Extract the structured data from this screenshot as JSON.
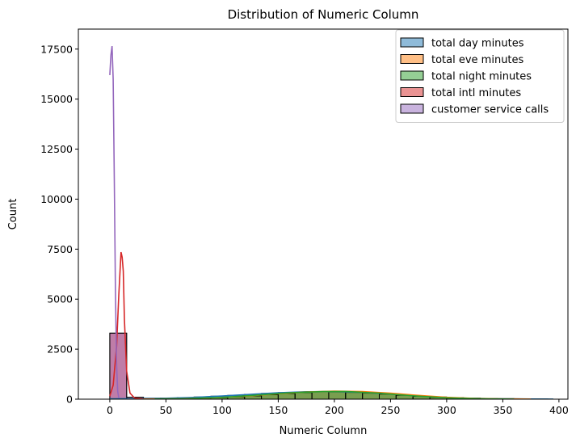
{
  "chart_data": {
    "type": "histogram",
    "title": "Distribution of Numeric Column",
    "xlabel": "Numeric Column",
    "ylabel": "Count",
    "xlim": [
      -28,
      408
    ],
    "ylim": [
      0,
      18500
    ],
    "xticks": [
      0,
      50,
      100,
      150,
      200,
      250,
      300,
      350,
      400
    ],
    "yticks": [
      0,
      2500,
      5000,
      7500,
      10000,
      12500,
      15000,
      17500
    ],
    "xtick_labels": [
      "0",
      "50",
      "100",
      "150",
      "200",
      "250",
      "300",
      "350",
      "400"
    ],
    "ytick_labels": [
      "0",
      "2500",
      "5000",
      "7500",
      "10000",
      "12500",
      "15000",
      "17500"
    ],
    "legend_position": "top-right",
    "grid": false,
    "series": [
      {
        "name": "total day minutes",
        "color": "#1f77b4",
        "bins": [
          [
            0,
            15,
            12
          ],
          [
            15,
            30,
            30
          ],
          [
            30,
            45,
            45
          ],
          [
            45,
            60,
            60
          ],
          [
            60,
            75,
            80
          ],
          [
            75,
            90,
            110
          ],
          [
            90,
            105,
            150
          ],
          [
            105,
            120,
            190
          ],
          [
            120,
            135,
            240
          ],
          [
            135,
            150,
            290
          ],
          [
            150,
            165,
            330
          ],
          [
            165,
            180,
            355
          ],
          [
            180,
            195,
            365
          ],
          [
            195,
            210,
            355
          ],
          [
            210,
            225,
            330
          ],
          [
            225,
            240,
            290
          ],
          [
            240,
            255,
            240
          ],
          [
            255,
            270,
            190
          ],
          [
            270,
            285,
            150
          ],
          [
            285,
            300,
            110
          ],
          [
            300,
            315,
            80
          ],
          [
            315,
            330,
            55
          ],
          [
            330,
            345,
            35
          ],
          [
            345,
            360,
            25
          ],
          [
            360,
            375,
            15
          ],
          [
            375,
            390,
            10
          ]
        ],
        "kde": [
          [
            0,
            20
          ],
          [
            25,
            35
          ],
          [
            50,
            50
          ],
          [
            75,
            90
          ],
          [
            100,
            160
          ],
          [
            125,
            240
          ],
          [
            150,
            320
          ],
          [
            175,
            370
          ],
          [
            200,
            380
          ],
          [
            225,
            340
          ],
          [
            250,
            260
          ],
          [
            275,
            160
          ],
          [
            300,
            80
          ],
          [
            325,
            40
          ],
          [
            350,
            20
          ],
          [
            375,
            10
          ],
          [
            395,
            5
          ]
        ]
      },
      {
        "name": "total eve minutes",
        "color": "#ff7f0e",
        "bins": [
          [
            0,
            15,
            5
          ],
          [
            15,
            30,
            10
          ],
          [
            30,
            45,
            15
          ],
          [
            45,
            60,
            20
          ],
          [
            60,
            75,
            30
          ],
          [
            75,
            90,
            45
          ],
          [
            90,
            105,
            70
          ],
          [
            105,
            120,
            110
          ],
          [
            120,
            135,
            160
          ],
          [
            135,
            150,
            220
          ],
          [
            150,
            165,
            280
          ],
          [
            165,
            180,
            330
          ],
          [
            180,
            195,
            370
          ],
          [
            195,
            210,
            390
          ],
          [
            210,
            225,
            380
          ],
          [
            225,
            240,
            340
          ],
          [
            240,
            255,
            280
          ],
          [
            255,
            270,
            210
          ],
          [
            270,
            285,
            150
          ],
          [
            285,
            300,
            100
          ],
          [
            300,
            315,
            60
          ],
          [
            315,
            330,
            35
          ],
          [
            330,
            345,
            20
          ],
          [
            345,
            360,
            10
          ],
          [
            360,
            375,
            5
          ]
        ],
        "kde": [
          [
            30,
            10
          ],
          [
            60,
            25
          ],
          [
            90,
            60
          ],
          [
            120,
            150
          ],
          [
            150,
            270
          ],
          [
            175,
            360
          ],
          [
            200,
            400
          ],
          [
            225,
            380
          ],
          [
            250,
            300
          ],
          [
            275,
            190
          ],
          [
            300,
            95
          ],
          [
            325,
            40
          ],
          [
            350,
            15
          ],
          [
            375,
            5
          ]
        ]
      },
      {
        "name": "total night minutes",
        "color": "#2ca02c",
        "bins": [
          [
            30,
            45,
            10
          ],
          [
            45,
            60,
            20
          ],
          [
            60,
            75,
            30
          ],
          [
            75,
            90,
            50
          ],
          [
            90,
            105,
            80
          ],
          [
            105,
            120,
            120
          ],
          [
            120,
            135,
            170
          ],
          [
            135,
            150,
            230
          ],
          [
            150,
            165,
            290
          ],
          [
            165,
            180,
            340
          ],
          [
            180,
            195,
            370
          ],
          [
            195,
            210,
            380
          ],
          [
            210,
            225,
            360
          ],
          [
            225,
            240,
            320
          ],
          [
            240,
            255,
            260
          ],
          [
            255,
            270,
            200
          ],
          [
            270,
            285,
            140
          ],
          [
            285,
            300,
            90
          ],
          [
            300,
            315,
            55
          ],
          [
            315,
            330,
            30
          ],
          [
            330,
            345,
            15
          ]
        ],
        "kde": [
          [
            40,
            10
          ],
          [
            70,
            30
          ],
          [
            100,
            90
          ],
          [
            130,
            200
          ],
          [
            160,
            320
          ],
          [
            190,
            380
          ],
          [
            210,
            385
          ],
          [
            240,
            300
          ],
          [
            270,
            170
          ],
          [
            300,
            70
          ],
          [
            330,
            25
          ],
          [
            360,
            5
          ]
        ]
      },
      {
        "name": "total intl minutes",
        "color": "#d62728",
        "bins": [
          [
            0,
            15,
            3300
          ],
          [
            15,
            30,
            100
          ]
        ],
        "kde": [
          [
            0,
            150
          ],
          [
            3,
            700
          ],
          [
            6,
            2600
          ],
          [
            8,
            5200
          ],
          [
            10,
            7350
          ],
          [
            11,
            7100
          ],
          [
            12,
            6400
          ],
          [
            13,
            4000
          ],
          [
            15,
            1400
          ],
          [
            18,
            300
          ],
          [
            22,
            60
          ],
          [
            30,
            10
          ]
        ]
      },
      {
        "name": "customer service calls",
        "color": "#9467bd",
        "bins": [
          [
            0,
            15,
            3300
          ]
        ],
        "kde": [
          [
            0,
            16200
          ],
          [
            1,
            17200
          ],
          [
            2,
            17650
          ],
          [
            3,
            16000
          ],
          [
            4,
            11000
          ],
          [
            5,
            5500
          ],
          [
            6,
            1800
          ],
          [
            7,
            400
          ],
          [
            8,
            50
          ]
        ]
      }
    ]
  }
}
